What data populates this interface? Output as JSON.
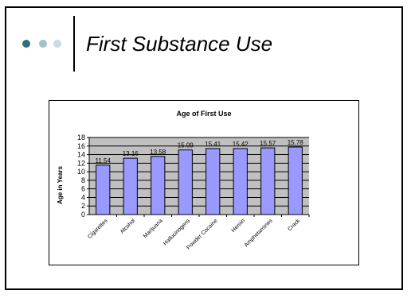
{
  "slide": {
    "title": "First Substance Use",
    "bullet_colors": [
      "#2f6f7f",
      "#9fc3d1",
      "#c9dbe2"
    ]
  },
  "chart_data": {
    "type": "bar",
    "title": "Age of First Use",
    "xlabel": "",
    "ylabel": "Age in Years",
    "categories": [
      "Cigarettes",
      "Alcohol",
      "Marijuana",
      "Hallucinogens",
      "Powder Cocaine",
      "Heroin",
      "Amphetamines",
      "Crack"
    ],
    "values": [
      11.54,
      13.16,
      13.58,
      15.09,
      15.41,
      15.42,
      15.57,
      15.78
    ],
    "value_labels": [
      "11.54",
      "13.16",
      "13.58",
      "15.09",
      "15.41",
      "15.42",
      "15.57",
      "15.78"
    ],
    "ylim": [
      0,
      18
    ],
    "yticks": [
      0,
      2,
      4,
      6,
      8,
      10,
      12,
      14,
      16,
      18
    ],
    "grid": true,
    "legend": "none",
    "colors": {
      "bar_fill": "#9999ff",
      "bar_stroke": "#000000",
      "plot_background": "#c0c0c0",
      "gridline": "#000000"
    }
  }
}
